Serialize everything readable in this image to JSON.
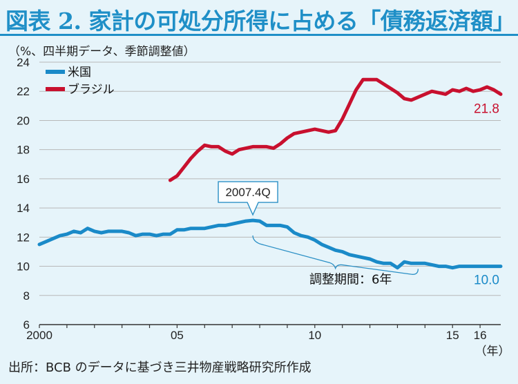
{
  "title": "図表 2. 家計の可処分所得に占める「債務返済額」",
  "unit_note": "（%、四半期データ、季節調整値）",
  "source": "出所：BCB のデータに基づき三井物産戦略研究所作成",
  "colors": {
    "us": "#1a8ac8",
    "brazil": "#c8102e",
    "accent": "#1f8fc7"
  },
  "chart_data": {
    "type": "line",
    "title": "家計の可処分所得に占める「債務返済額」",
    "ylabel": "%",
    "xlabel": "年",
    "ylim": [
      6,
      24
    ],
    "xlim": [
      2000.0,
      2016.75
    ],
    "yticks": [
      "6",
      "8",
      "10",
      "12",
      "14",
      "16",
      "18",
      "20",
      "22",
      "24"
    ],
    "xticks": [
      {
        "label": "2000",
        "x": 2000.0
      },
      {
        "label": "05",
        "x": 2005.0
      },
      {
        "label": "10",
        "x": 2010.0
      },
      {
        "label": "15",
        "x": 2015.0
      },
      {
        "label": "16",
        "x": 2016.0
      }
    ],
    "x_unit_label": "（年）",
    "series": [
      {
        "name": "米国",
        "end_label": "10.0",
        "points": [
          [
            2000.0,
            11.5
          ],
          [
            2000.25,
            11.7
          ],
          [
            2000.5,
            11.9
          ],
          [
            2000.75,
            12.1
          ],
          [
            2001.0,
            12.2
          ],
          [
            2001.25,
            12.4
          ],
          [
            2001.5,
            12.3
          ],
          [
            2001.75,
            12.6
          ],
          [
            2002.0,
            12.4
          ],
          [
            2002.25,
            12.3
          ],
          [
            2002.5,
            12.4
          ],
          [
            2002.75,
            12.4
          ],
          [
            2003.0,
            12.4
          ],
          [
            2003.25,
            12.3
          ],
          [
            2003.5,
            12.1
          ],
          [
            2003.75,
            12.2
          ],
          [
            2004.0,
            12.2
          ],
          [
            2004.25,
            12.1
          ],
          [
            2004.5,
            12.2
          ],
          [
            2004.75,
            12.2
          ],
          [
            2005.0,
            12.5
          ],
          [
            2005.25,
            12.5
          ],
          [
            2005.5,
            12.6
          ],
          [
            2005.75,
            12.6
          ],
          [
            2006.0,
            12.6
          ],
          [
            2006.25,
            12.7
          ],
          [
            2006.5,
            12.8
          ],
          [
            2006.75,
            12.8
          ],
          [
            2007.0,
            12.9
          ],
          [
            2007.25,
            13.0
          ],
          [
            2007.5,
            13.1
          ],
          [
            2007.75,
            13.15
          ],
          [
            2008.0,
            13.1
          ],
          [
            2008.25,
            12.8
          ],
          [
            2008.5,
            12.8
          ],
          [
            2008.75,
            12.8
          ],
          [
            2009.0,
            12.7
          ],
          [
            2009.25,
            12.3
          ],
          [
            2009.5,
            12.1
          ],
          [
            2009.75,
            12.0
          ],
          [
            2010.0,
            11.8
          ],
          [
            2010.25,
            11.5
          ],
          [
            2010.5,
            11.3
          ],
          [
            2010.75,
            11.1
          ],
          [
            2011.0,
            11.0
          ],
          [
            2011.25,
            10.8
          ],
          [
            2011.5,
            10.7
          ],
          [
            2011.75,
            10.6
          ],
          [
            2012.0,
            10.5
          ],
          [
            2012.25,
            10.3
          ],
          [
            2012.5,
            10.2
          ],
          [
            2012.75,
            10.2
          ],
          [
            2013.0,
            9.9
          ],
          [
            2013.25,
            10.3
          ],
          [
            2013.5,
            10.2
          ],
          [
            2013.75,
            10.2
          ],
          [
            2014.0,
            10.2
          ],
          [
            2014.25,
            10.1
          ],
          [
            2014.5,
            10.0
          ],
          [
            2014.75,
            10.0
          ],
          [
            2015.0,
            9.9
          ],
          [
            2015.25,
            10.0
          ],
          [
            2015.5,
            10.0
          ],
          [
            2015.75,
            10.0
          ],
          [
            2016.0,
            10.0
          ],
          [
            2016.25,
            10.0
          ],
          [
            2016.5,
            10.0
          ],
          [
            2016.75,
            10.0
          ]
        ]
      },
      {
        "name": "ブラジル",
        "end_label": "21.8",
        "points": [
          [
            2004.75,
            15.9
          ],
          [
            2005.0,
            16.2
          ],
          [
            2005.25,
            16.8
          ],
          [
            2005.5,
            17.4
          ],
          [
            2005.75,
            17.9
          ],
          [
            2006.0,
            18.3
          ],
          [
            2006.25,
            18.2
          ],
          [
            2006.5,
            18.2
          ],
          [
            2006.75,
            17.9
          ],
          [
            2007.0,
            17.7
          ],
          [
            2007.25,
            18.0
          ],
          [
            2007.5,
            18.1
          ],
          [
            2007.75,
            18.2
          ],
          [
            2008.0,
            18.2
          ],
          [
            2008.25,
            18.2
          ],
          [
            2008.5,
            18.1
          ],
          [
            2008.75,
            18.4
          ],
          [
            2009.0,
            18.8
          ],
          [
            2009.25,
            19.1
          ],
          [
            2009.5,
            19.2
          ],
          [
            2009.75,
            19.3
          ],
          [
            2010.0,
            19.4
          ],
          [
            2010.25,
            19.3
          ],
          [
            2010.5,
            19.2
          ],
          [
            2010.75,
            19.3
          ],
          [
            2011.0,
            20.1
          ],
          [
            2011.25,
            21.1
          ],
          [
            2011.5,
            22.1
          ],
          [
            2011.75,
            22.8
          ],
          [
            2012.0,
            22.8
          ],
          [
            2012.25,
            22.8
          ],
          [
            2012.5,
            22.5
          ],
          [
            2012.75,
            22.2
          ],
          [
            2013.0,
            21.9
          ],
          [
            2013.25,
            21.5
          ],
          [
            2013.5,
            21.4
          ],
          [
            2013.75,
            21.6
          ],
          [
            2014.0,
            21.8
          ],
          [
            2014.25,
            22.0
          ],
          [
            2014.5,
            21.9
          ],
          [
            2014.75,
            21.8
          ],
          [
            2015.0,
            22.1
          ],
          [
            2015.25,
            22.0
          ],
          [
            2015.5,
            22.2
          ],
          [
            2015.75,
            22.0
          ],
          [
            2016.0,
            22.1
          ],
          [
            2016.25,
            22.3
          ],
          [
            2016.5,
            22.1
          ],
          [
            2016.75,
            21.8
          ]
        ]
      }
    ],
    "annotations": {
      "peak_label": "2007.4Q",
      "peak_x": 2007.75,
      "peak_y": 13.15,
      "adjust_label": "調整期間：6年",
      "adjust_from": 2007.75,
      "adjust_to": 2013.75
    },
    "grid": "horizontal",
    "legend": "top-left"
  }
}
